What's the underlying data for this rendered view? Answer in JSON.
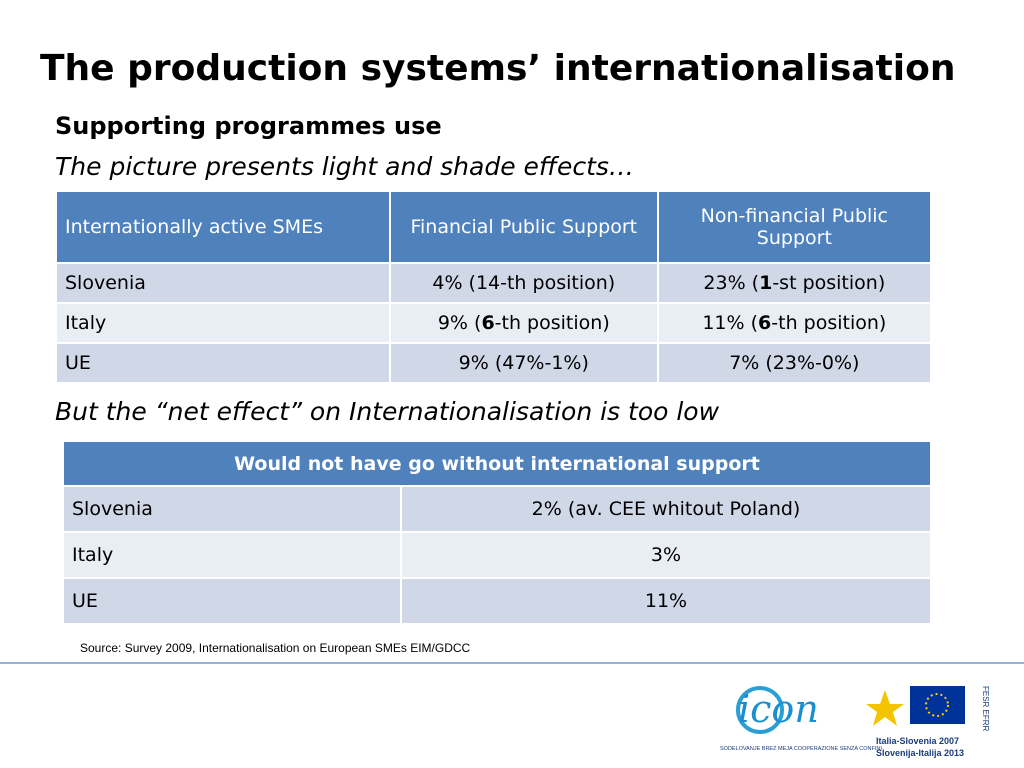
{
  "header": {
    "title": "The production systems’ internationalisation",
    "subtitle": "Supporting programmes use",
    "note": "The picture presents light and shade effects…"
  },
  "table1": {
    "header": [
      "Internationally active SMEs",
      "Financial Public Support",
      "Non-financial Public Support"
    ],
    "rows": [
      [
        "Slovenia",
        "4% (14-th position)",
        {
          "runs": [
            {
              "text": "23% ("
            },
            {
              "text": "1",
              "bold": true
            },
            {
              "text": "-st position)"
            }
          ]
        }
      ],
      [
        "Italy",
        {
          "runs": [
            {
              "text": "9% ("
            },
            {
              "text": "6",
              "bold": true
            },
            {
              "text": "-th position)"
            }
          ]
        },
        {
          "runs": [
            {
              "text": "11%  ("
            },
            {
              "text": "6",
              "bold": true
            },
            {
              "text": "-th position)"
            }
          ]
        }
      ],
      [
        "UE",
        "9%  (47%-1%)",
        "7% (23%-0%)"
      ]
    ]
  },
  "section2": {
    "heading": "But the “net effect” on Internationalisation is too low"
  },
  "table2": {
    "header": "Would not have go without  international support",
    "rows": [
      [
        "Slovenia",
        "2% (av. CEE whitout Poland)"
      ],
      [
        "Italy",
        "3%"
      ],
      [
        "UE",
        "11%"
      ]
    ]
  },
  "source": "Source: Survey 2009, Internationalisation on European SMEs EIM/GDCC",
  "logos": {
    "icon": "icon",
    "icon_caption": "SODELOVANJE BREZ MEJA  COOPERAZIONE SENZA CONFINI",
    "programme_line1": "Italia-Slovenia 2007",
    "programme_line2": "Slovenija-Italija 2013",
    "fund": "FESR EFRR"
  }
}
